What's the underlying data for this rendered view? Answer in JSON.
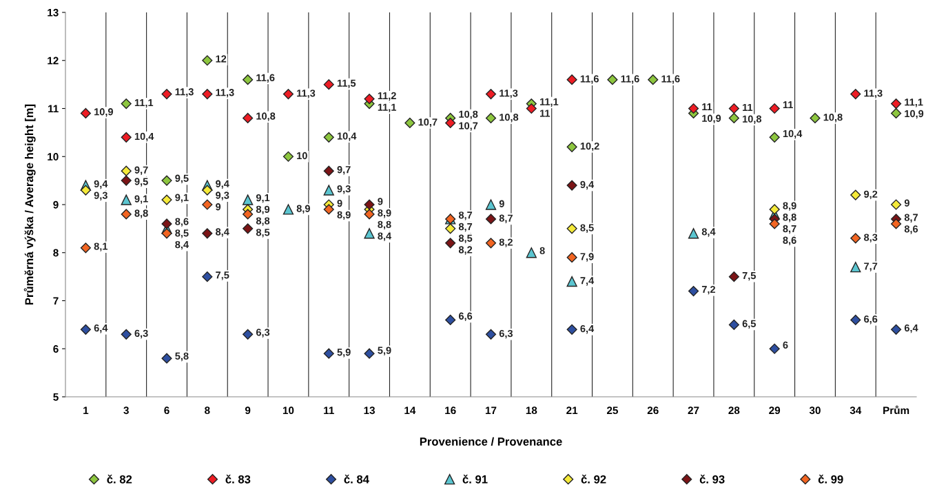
{
  "chart_data": {
    "type": "scatter",
    "xlabel": "Provenience / Provenance",
    "ylabel": "Průměrná výška / Average height [m]",
    "categories": [
      "1",
      "3",
      "6",
      "8",
      "9",
      "10",
      "11",
      "13",
      "14",
      "16",
      "17",
      "18",
      "21",
      "25",
      "26",
      "27",
      "28",
      "29",
      "30",
      "34",
      "Prům"
    ],
    "ylim": [
      5,
      13
    ],
    "yticks": [
      5,
      6,
      7,
      8,
      9,
      10,
      11,
      12,
      13
    ],
    "grid": "x",
    "legend": "bottom",
    "marker": "diamond",
    "series": [
      {
        "name": "č. 82",
        "color": "#8dc63f",
        "values": [
          null,
          11.1,
          9.5,
          12,
          11.6,
          10,
          10.4,
          11.1,
          10.7,
          10.8,
          10.8,
          11.1,
          10.2,
          11.6,
          11.6,
          10.9,
          10.8,
          10.4,
          10.8,
          null,
          10.9
        ],
        "value_labels": [
          null,
          "11,1",
          "9,5",
          "12",
          "11,6",
          "10",
          "10,4",
          "11,1",
          "10,7",
          "10,8",
          "10,8",
          "11,1",
          "10,2",
          "11,6",
          "11,6",
          "10,9",
          "10,8",
          "10,4",
          "10,8",
          null,
          "10,9"
        ]
      },
      {
        "name": "č. 83",
        "color": "#ed1c24",
        "values": [
          10.9,
          10.4,
          11.3,
          11.3,
          10.8,
          11.3,
          11.5,
          11.2,
          null,
          10.7,
          11.3,
          11,
          11.6,
          null,
          null,
          11,
          11,
          11,
          null,
          11.3,
          11.1
        ],
        "value_labels": [
          "10,9",
          "10,4",
          "11,3",
          "11,3",
          "10,8",
          "11,3",
          "11,5",
          "11,2",
          null,
          "10,7",
          "11,3",
          "11",
          "11,6",
          null,
          null,
          "11",
          "11",
          "11",
          null,
          "11,3",
          "11,1"
        ]
      },
      {
        "name": "č. 84",
        "color": "#2e4fa0",
        "values": [
          6.4,
          6.3,
          5.8,
          7.5,
          6.3,
          null,
          5.9,
          5.9,
          null,
          6.6,
          6.3,
          null,
          6.4,
          null,
          null,
          7.2,
          6.5,
          6,
          null,
          6.6,
          6.4
        ],
        "value_labels": [
          "6,4",
          "6,3",
          "5,8",
          "7,5",
          "6,3",
          null,
          "5,9",
          "5,9",
          null,
          "6,6",
          "6,3",
          null,
          "6,4",
          null,
          null,
          "7,2",
          "6,5",
          "6",
          null,
          "6,6",
          "6,4"
        ]
      },
      {
        "name": "č. 91",
        "color": "#5bc5d0",
        "marker": "triangle",
        "values": [
          9.4,
          9.1,
          8.5,
          9.4,
          9.1,
          8.9,
          9.3,
          8.4,
          null,
          8.7,
          9,
          8,
          7.4,
          null,
          null,
          8.4,
          null,
          8.8,
          null,
          7.7,
          null
        ],
        "value_labels": [
          "9,4",
          "9,1",
          "8,5",
          "9,4",
          "9,1",
          "8,9",
          "9,3",
          "8,4",
          null,
          "8,7",
          "9",
          "8",
          "7,4",
          null,
          null,
          "8,4",
          null,
          "8,8",
          null,
          "7,7",
          null
        ]
      },
      {
        "name": "č. 92",
        "color": "#f5ea3a",
        "values": [
          9.3,
          9.7,
          9.1,
          9.3,
          8.9,
          null,
          9,
          8.9,
          null,
          8.5,
          null,
          null,
          8.5,
          null,
          null,
          null,
          null,
          8.9,
          null,
          9.2,
          9
        ],
        "value_labels": [
          "9,3",
          "9,7",
          "9,1",
          "9,3",
          "8,9",
          null,
          "9",
          "8,9",
          null,
          "8,5",
          null,
          null,
          "8,5",
          null,
          null,
          null,
          null,
          "8,9",
          null,
          "9,2",
          "9"
        ]
      },
      {
        "name": "č. 93",
        "color": "#7b1416",
        "values": [
          null,
          9.5,
          8.6,
          8.4,
          8.5,
          null,
          9.7,
          9,
          null,
          8.2,
          8.7,
          null,
          9.4,
          null,
          null,
          null,
          7.5,
          8.7,
          null,
          null,
          8.7
        ],
        "value_labels": [
          null,
          "9,5",
          "8,6",
          "8,4",
          "8,5",
          null,
          "9,7",
          "9",
          null,
          "8,2",
          "8,7",
          null,
          "9,4",
          null,
          null,
          null,
          "7,5",
          "8,7",
          null,
          null,
          "8,7"
        ]
      },
      {
        "name": "č. 99",
        "color": "#f26522",
        "values": [
          8.1,
          8.8,
          8.4,
          9,
          8.8,
          null,
          8.9,
          8.8,
          null,
          8.7,
          8.2,
          null,
          7.9,
          null,
          null,
          null,
          null,
          8.6,
          null,
          8.3,
          8.6
        ],
        "value_labels": [
          "8,1",
          "8,8",
          "8,4",
          "9",
          "8,8",
          null,
          "8,9",
          "8,8",
          null,
          "8,7",
          "8,2",
          null,
          "7,9",
          null,
          null,
          null,
          null,
          "8,6",
          null,
          "8,3",
          "8,6"
        ]
      }
    ]
  }
}
